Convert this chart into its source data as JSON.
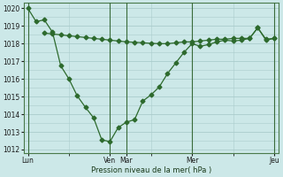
{
  "xlabel": "Pression niveau de la mer( hPa )",
  "bg_color": "#cce8e8",
  "grid_color": "#aacccc",
  "line_color": "#2d6a2d",
  "ylim": [
    1011.8,
    1020.3
  ],
  "yticks": [
    1012,
    1013,
    1014,
    1015,
    1016,
    1017,
    1018,
    1019,
    1020
  ],
  "day_labels": [
    "Lun",
    "Ven",
    "Mar",
    "Mer",
    "Jeu"
  ],
  "day_x": [
    0,
    10,
    12,
    20,
    30
  ],
  "total_points": 31,
  "line1_x": [
    0,
    1,
    2,
    3,
    4,
    5,
    6,
    7,
    8,
    9,
    10,
    11,
    12,
    13,
    14,
    15,
    16,
    17,
    18,
    19,
    20,
    21,
    22,
    23,
    24,
    25,
    26,
    27,
    28,
    29,
    30
  ],
  "line1_y": [
    1020.0,
    1019.25,
    1019.35,
    1018.65,
    1016.75,
    1016.0,
    1015.05,
    1014.4,
    1013.8,
    1012.55,
    1012.45,
    1013.25,
    1013.55,
    1013.7,
    1014.75,
    1015.1,
    1015.55,
    1016.3,
    1016.9,
    1017.5,
    1018.0,
    1017.85,
    1017.95,
    1018.1,
    1018.2,
    1018.15,
    1018.2,
    1018.3,
    1018.9,
    1018.2,
    1018.3
  ],
  "line2_x": [
    2,
    3,
    4,
    5,
    6,
    7,
    8,
    9,
    10,
    11,
    12,
    13,
    14,
    15,
    16,
    17,
    18,
    19,
    20,
    21,
    22,
    23,
    24,
    25,
    26,
    27,
    28,
    29,
    30
  ],
  "line2_y": [
    1018.6,
    1018.55,
    1018.5,
    1018.45,
    1018.4,
    1018.35,
    1018.3,
    1018.25,
    1018.2,
    1018.15,
    1018.1,
    1018.08,
    1018.05,
    1018.02,
    1018.0,
    1018.0,
    1018.05,
    1018.1,
    1018.1,
    1018.15,
    1018.2,
    1018.25,
    1018.25,
    1018.3,
    1018.3,
    1018.3,
    1018.9,
    1018.25,
    1018.3
  ],
  "markersize": 2.5,
  "linewidth": 0.9
}
